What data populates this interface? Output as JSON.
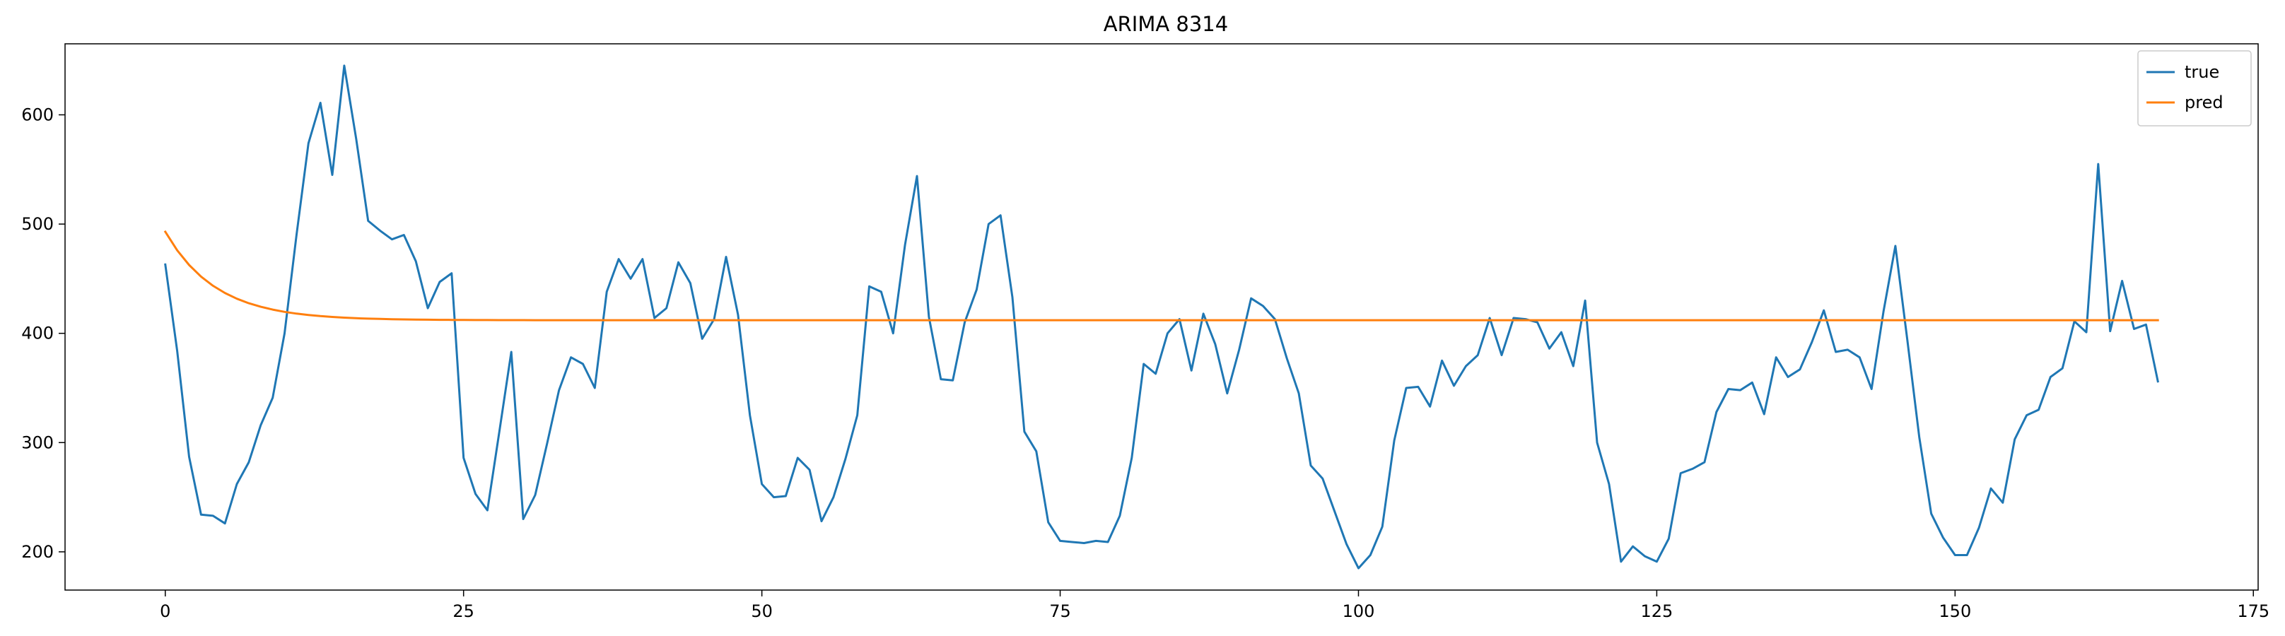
{
  "chart_data": {
    "type": "line",
    "title": "ARIMA 8314",
    "xlabel": "",
    "ylabel": "",
    "xlim": [
      -8.4,
      175.4
    ],
    "ylim": [
      165,
      665
    ],
    "x_ticks": [
      0,
      25,
      50,
      75,
      100,
      125,
      150,
      175
    ],
    "x_tick_labels": [
      "0",
      "25",
      "50",
      "75",
      "100",
      "125",
      "150",
      "175"
    ],
    "y_ticks": [
      200,
      300,
      400,
      500,
      600
    ],
    "y_tick_labels": [
      "200",
      "300",
      "400",
      "500",
      "600"
    ],
    "grid": false,
    "legend_position": "top-right",
    "series": [
      {
        "name": "true",
        "color": "#1f77b4",
        "values": [
          463,
          384,
          287,
          234,
          233,
          226,
          262,
          282,
          316,
          341,
          400,
          490,
          574,
          611,
          545,
          645,
          578,
          503,
          494,
          486,
          490,
          466,
          423,
          447,
          455,
          286,
          253,
          238,
          310,
          383,
          230,
          252,
          299,
          348,
          378,
          372,
          350,
          438,
          468,
          450,
          468,
          414,
          423,
          465,
          446,
          395,
          413,
          470,
          417,
          325,
          262,
          250,
          251,
          286,
          275,
          228,
          250,
          285,
          325,
          443,
          438,
          400,
          481,
          544,
          415,
          358,
          357,
          410,
          440,
          500,
          508,
          433,
          310,
          292,
          227,
          210,
          209,
          208,
          210,
          209,
          233,
          286,
          372,
          363,
          400,
          413,
          366,
          418,
          390,
          345,
          385,
          432,
          425,
          413,
          377,
          345,
          279,
          267,
          237,
          207,
          185,
          197,
          223,
          302,
          350,
          351,
          333,
          375,
          352,
          370,
          380,
          414,
          380,
          414,
          413,
          410,
          386,
          401,
          370,
          430,
          300,
          262,
          191,
          205,
          196,
          191,
          212,
          272,
          276,
          282,
          328,
          349,
          348,
          355,
          326,
          378,
          360,
          367,
          392,
          421,
          383,
          385,
          378,
          349,
          420,
          480,
          394,
          305,
          235,
          213,
          197,
          197,
          222,
          258,
          245,
          303,
          325,
          330,
          360,
          368,
          411,
          401,
          555,
          402,
          448,
          404,
          408,
          356
        ]
      },
      {
        "name": "pred",
        "color": "#ff7f0e",
        "type": "exponential_decay",
        "start": 493,
        "asymptote": 412,
        "decay": 0.79
      }
    ],
    "n_points": 168
  }
}
